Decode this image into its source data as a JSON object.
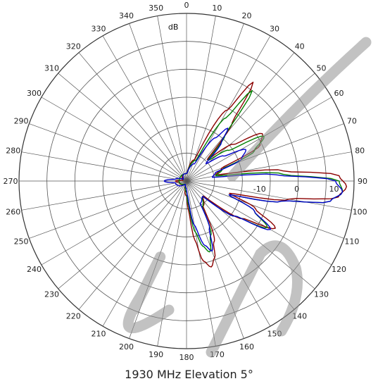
{
  "chart_data": {
    "type": "polar",
    "title": "1930 MHz Elevation 5°",
    "radial_unit": "dB",
    "radial_range": [
      -30,
      15
    ],
    "radial_tick_labels": [
      "-10",
      "0",
      "10"
    ],
    "radial_ticks": [
      -10,
      0,
      10
    ],
    "angle_ticks": [
      0,
      10,
      20,
      30,
      40,
      50,
      60,
      70,
      80,
      90,
      100,
      110,
      120,
      130,
      140,
      150,
      160,
      170,
      180,
      190,
      200,
      210,
      220,
      230,
      240,
      250,
      260,
      270,
      280,
      290,
      300,
      310,
      320,
      330,
      340,
      350
    ],
    "angle_tick_labels": [
      "0",
      "10",
      "20",
      "30",
      "40",
      "50",
      "60",
      "70",
      "80",
      "90",
      "100",
      "110",
      "120",
      "130",
      "140",
      "150",
      "160",
      "170",
      "180",
      "190",
      "200",
      "210",
      "220",
      "230",
      "240",
      "250",
      "260",
      "270",
      "280",
      "290",
      "300",
      "310",
      "320",
      "330",
      "340",
      "350"
    ],
    "angle_direction": "clockwise",
    "zero_angle_position": "top",
    "grid": true,
    "series": [
      {
        "color": "#8b0000",
        "points": [
          [
            0,
            -28
          ],
          [
            20,
            -24
          ],
          [
            30,
            -8
          ],
          [
            34,
            2
          ],
          [
            38,
            -10
          ],
          [
            44,
            -22
          ],
          [
            52,
            -14
          ],
          [
            58,
            -6
          ],
          [
            64,
            -8
          ],
          [
            70,
            -20
          ],
          [
            78,
            -22
          ],
          [
            84,
            -4
          ],
          [
            88,
            11
          ],
          [
            92,
            13
          ],
          [
            96,
            11
          ],
          [
            100,
            -2
          ],
          [
            106,
            -18
          ],
          [
            112,
            -10
          ],
          [
            118,
            -3
          ],
          [
            124,
            -12
          ],
          [
            132,
            -24
          ],
          [
            146,
            -22
          ],
          [
            156,
            -12
          ],
          [
            160,
            -8
          ],
          [
            164,
            -6
          ],
          [
            168,
            -8
          ],
          [
            172,
            -14
          ],
          [
            176,
            -22
          ],
          [
            180,
            -26
          ],
          [
            200,
            -29
          ],
          [
            260,
            -28
          ],
          [
            270,
            -27
          ],
          [
            280,
            -29
          ],
          [
            340,
            -28
          ],
          [
            360,
            -28
          ]
        ]
      },
      {
        "color": "#008000",
        "points": [
          [
            0,
            -28
          ],
          [
            24,
            -24
          ],
          [
            32,
            -10
          ],
          [
            36,
            0
          ],
          [
            40,
            -14
          ],
          [
            46,
            -22
          ],
          [
            54,
            -16
          ],
          [
            60,
            -6
          ],
          [
            66,
            -10
          ],
          [
            72,
            -20
          ],
          [
            80,
            -22
          ],
          [
            86,
            -4
          ],
          [
            90,
            11
          ],
          [
            94,
            12
          ],
          [
            98,
            9
          ],
          [
            102,
            -4
          ],
          [
            108,
            -18
          ],
          [
            114,
            -10
          ],
          [
            120,
            -5
          ],
          [
            126,
            -14
          ],
          [
            134,
            -24
          ],
          [
            148,
            -22
          ],
          [
            156,
            -14
          ],
          [
            162,
            -10
          ],
          [
            166,
            -12
          ],
          [
            170,
            -16
          ],
          [
            176,
            -24
          ],
          [
            180,
            -27
          ],
          [
            200,
            -29
          ],
          [
            270,
            -28
          ],
          [
            340,
            -28
          ],
          [
            360,
            -28
          ]
        ]
      },
      {
        "color": "#0000cc",
        "points": [
          [
            0,
            -28
          ],
          [
            24,
            -25
          ],
          [
            34,
            -16
          ],
          [
            38,
            -12
          ],
          [
            42,
            -16
          ],
          [
            48,
            -23
          ],
          [
            56,
            -18
          ],
          [
            62,
            -12
          ],
          [
            68,
            -14
          ],
          [
            74,
            -22
          ],
          [
            82,
            -23
          ],
          [
            86,
            -6
          ],
          [
            90,
            10
          ],
          [
            94,
            12
          ],
          [
            98,
            9
          ],
          [
            102,
            -4
          ],
          [
            108,
            -18
          ],
          [
            114,
            -10
          ],
          [
            120,
            -4
          ],
          [
            126,
            -14
          ],
          [
            134,
            -24
          ],
          [
            148,
            -23
          ],
          [
            154,
            -16
          ],
          [
            160,
            -10
          ],
          [
            164,
            -12
          ],
          [
            170,
            -18
          ],
          [
            176,
            -26
          ],
          [
            180,
            -28
          ],
          [
            200,
            -29
          ],
          [
            260,
            -27
          ],
          [
            270,
            -24
          ],
          [
            280,
            -27
          ],
          [
            300,
            -29
          ],
          [
            340,
            -28
          ],
          [
            360,
            -28
          ]
        ]
      }
    ]
  }
}
